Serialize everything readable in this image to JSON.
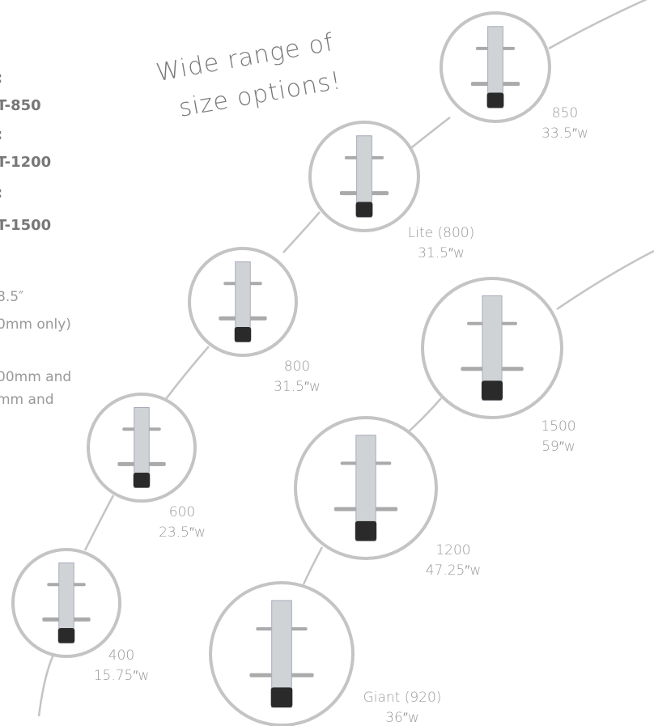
{
  "heading": [
    "Wide range of",
    "size options!"
  ],
  "left_text": [
    ":",
    "T-850",
    ":",
    "T-1200",
    ":",
    "T-1500",
    "8.5″",
    "0mm only)",
    "00mm and",
    "mm and"
  ],
  "sizes": [
    {
      "name": "850",
      "width": "33.5″w"
    },
    {
      "name": "Lite (800)",
      "width": "31.5″w"
    },
    {
      "name": "800",
      "width": "31.5″w"
    },
    {
      "name": "600",
      "width": "23.5″w"
    },
    {
      "name": "400",
      "width": "15.75″w"
    },
    {
      "name": "1500",
      "width": "59″w"
    },
    {
      "name": "1200",
      "width": "47.25″w"
    },
    {
      "name": "Giant (920)",
      "width": "36″w"
    }
  ]
}
